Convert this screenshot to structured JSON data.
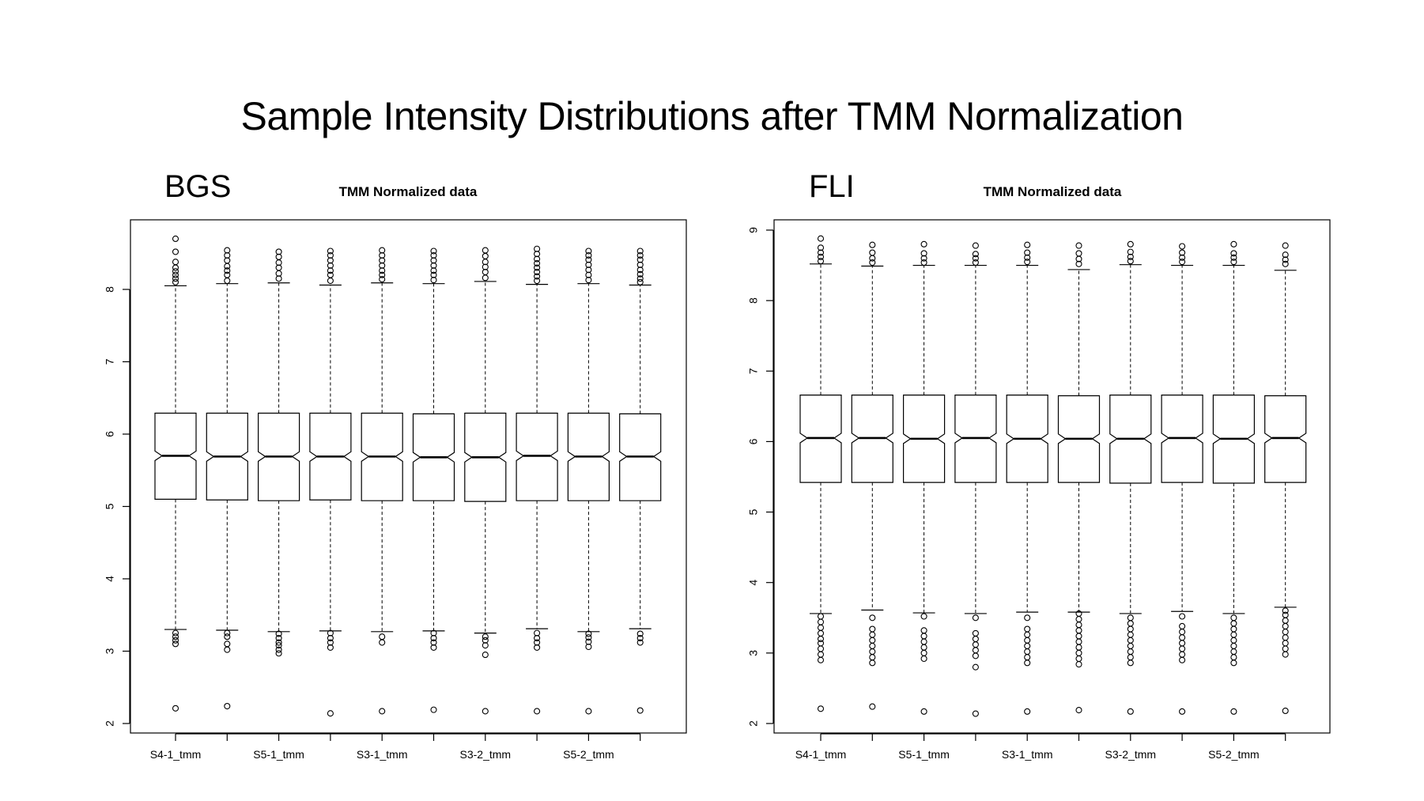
{
  "slide": {
    "title": "Sample Intensity Distributions after TMM Normalization"
  },
  "chart_data": [
    {
      "type": "boxplot",
      "panel_label": "BGS",
      "title": "TMM Normalized data",
      "xlabel": "",
      "ylabel": "",
      "ylim": [
        2,
        8.9
      ],
      "y_ticks": [
        2,
        3,
        4,
        5,
        6,
        7,
        8
      ],
      "x_tick_labels": [
        "S4-1_tmm",
        "S5-1_tmm",
        "S3-1_tmm",
        "S3-2_tmm",
        "S5-2_tmm"
      ],
      "notched": true,
      "grid": false,
      "series": [
        {
          "whisker_low": 3.3,
          "q1": 5.1,
          "median": 5.7,
          "q3": 6.29,
          "whisker_high": 8.05,
          "outliers_high": [
            8.1,
            8.15,
            8.2,
            8.25,
            8.3,
            8.38,
            8.52,
            8.7
          ],
          "outliers_low": [
            3.1,
            3.15,
            3.2,
            3.25,
            2.21
          ]
        },
        {
          "whisker_low": 3.29,
          "q1": 5.09,
          "median": 5.69,
          "q3": 6.29,
          "whisker_high": 8.08,
          "outliers_high": [
            8.12,
            8.2,
            8.26,
            8.32,
            8.4,
            8.47,
            8.54
          ],
          "outliers_low": [
            3.02,
            3.1,
            3.2,
            3.25,
            2.24
          ]
        },
        {
          "whisker_low": 3.27,
          "q1": 5.08,
          "median": 5.69,
          "q3": 6.29,
          "whisker_high": 8.09,
          "outliers_high": [
            8.15,
            8.22,
            8.3,
            8.37,
            8.45,
            8.52
          ],
          "outliers_low": [
            2.97,
            3.02,
            3.08,
            3.12,
            3.18,
            3.24
          ]
        },
        {
          "whisker_low": 3.28,
          "q1": 5.09,
          "median": 5.69,
          "q3": 6.29,
          "whisker_high": 8.06,
          "outliers_high": [
            8.12,
            8.2,
            8.26,
            8.33,
            8.4,
            8.47,
            8.53
          ],
          "outliers_low": [
            3.05,
            3.12,
            3.18,
            3.25,
            2.14
          ]
        },
        {
          "whisker_low": 3.27,
          "q1": 5.08,
          "median": 5.69,
          "q3": 6.29,
          "whisker_high": 8.09,
          "outliers_high": [
            8.14,
            8.2,
            8.26,
            8.33,
            8.4,
            8.47,
            8.54
          ],
          "outliers_low": [
            3.12,
            3.2,
            2.17
          ]
        },
        {
          "whisker_low": 3.28,
          "q1": 5.08,
          "median": 5.68,
          "q3": 6.28,
          "whisker_high": 8.08,
          "outliers_high": [
            8.13,
            8.2,
            8.26,
            8.33,
            8.4,
            8.47,
            8.53
          ],
          "outliers_low": [
            3.05,
            3.12,
            3.18,
            3.25,
            2.19
          ]
        },
        {
          "whisker_low": 3.25,
          "q1": 5.07,
          "median": 5.68,
          "q3": 6.29,
          "whisker_high": 8.11,
          "outliers_high": [
            8.16,
            8.24,
            8.31,
            8.38,
            8.46,
            8.54
          ],
          "outliers_low": [
            2.95,
            3.08,
            3.15,
            3.2,
            2.17
          ]
        },
        {
          "whisker_low": 3.31,
          "q1": 5.08,
          "median": 5.7,
          "q3": 6.29,
          "whisker_high": 8.07,
          "outliers_high": [
            8.12,
            8.18,
            8.24,
            8.3,
            8.36,
            8.42,
            8.49,
            8.56
          ],
          "outliers_low": [
            3.05,
            3.12,
            3.18,
            3.25,
            2.17
          ]
        },
        {
          "whisker_low": 3.27,
          "q1": 5.08,
          "median": 5.69,
          "q3": 6.29,
          "whisker_high": 8.08,
          "outliers_high": [
            8.13,
            8.2,
            8.27,
            8.34,
            8.41,
            8.47,
            8.53
          ],
          "outliers_low": [
            3.06,
            3.13,
            3.19,
            3.24,
            2.17
          ]
        },
        {
          "whisker_low": 3.31,
          "q1": 5.08,
          "median": 5.69,
          "q3": 6.28,
          "whisker_high": 8.06,
          "outliers_high": [
            8.1,
            8.15,
            8.21,
            8.27,
            8.34,
            8.41,
            8.47,
            8.53
          ],
          "outliers_low": [
            3.12,
            3.18,
            3.24,
            2.18
          ]
        }
      ]
    },
    {
      "type": "boxplot",
      "panel_label": "FLI",
      "title": "TMM Normalized data",
      "xlabel": "",
      "ylabel": "",
      "ylim": [
        2,
        9.1
      ],
      "y_ticks": [
        2,
        3,
        4,
        5,
        6,
        7,
        8,
        9
      ],
      "x_tick_labels": [
        "S4-1_tmm",
        "S5-1_tmm",
        "S3-1_tmm",
        "S3-2_tmm",
        "S5-2_tmm"
      ],
      "notched": true,
      "grid": false,
      "series": [
        {
          "whisker_low": 3.56,
          "q1": 5.42,
          "median": 6.05,
          "q3": 6.66,
          "whisker_high": 8.52,
          "outliers_high": [
            8.56,
            8.62,
            8.68,
            8.75,
            8.88
          ],
          "outliers_low": [
            2.9,
            2.98,
            3.06,
            3.14,
            3.2,
            3.28,
            3.36,
            3.44,
            3.52,
            2.21
          ]
        },
        {
          "whisker_low": 3.61,
          "q1": 5.42,
          "median": 6.05,
          "q3": 6.66,
          "whisker_high": 8.49,
          "outliers_high": [
            8.54,
            8.6,
            8.68,
            8.79
          ],
          "outliers_low": [
            2.86,
            2.94,
            3.02,
            3.1,
            3.18,
            3.26,
            3.34,
            3.5,
            2.24
          ]
        },
        {
          "whisker_low": 3.57,
          "q1": 5.42,
          "median": 6.04,
          "q3": 6.66,
          "whisker_high": 8.5,
          "outliers_high": [
            8.54,
            8.6,
            8.67,
            8.8
          ],
          "outliers_low": [
            2.92,
            3.0,
            3.08,
            3.16,
            3.24,
            3.32,
            3.52,
            2.17
          ]
        },
        {
          "whisker_low": 3.56,
          "q1": 5.42,
          "median": 6.05,
          "q3": 6.66,
          "whisker_high": 8.5,
          "outliers_high": [
            8.54,
            8.6,
            8.66,
            8.78
          ],
          "outliers_low": [
            2.8,
            2.96,
            3.04,
            3.12,
            3.2,
            3.28,
            3.5,
            2.14
          ]
        },
        {
          "whisker_low": 3.58,
          "q1": 5.42,
          "median": 6.04,
          "q3": 6.66,
          "whisker_high": 8.5,
          "outliers_high": [
            8.55,
            8.61,
            8.68,
            8.79
          ],
          "outliers_low": [
            2.86,
            2.94,
            3.02,
            3.1,
            3.18,
            3.26,
            3.34,
            3.5,
            2.17
          ]
        },
        {
          "whisker_low": 3.58,
          "q1": 5.42,
          "median": 6.04,
          "q3": 6.65,
          "whisker_high": 8.44,
          "outliers_high": [
            8.52,
            8.59,
            8.67,
            8.78
          ],
          "outliers_low": [
            2.84,
            2.92,
            3.0,
            3.08,
            3.16,
            3.24,
            3.32,
            3.4,
            3.48,
            3.56,
            2.19
          ]
        },
        {
          "whisker_low": 3.56,
          "q1": 5.41,
          "median": 6.04,
          "q3": 6.66,
          "whisker_high": 8.51,
          "outliers_high": [
            8.56,
            8.62,
            8.69,
            8.8
          ],
          "outliers_low": [
            2.86,
            2.94,
            3.02,
            3.1,
            3.18,
            3.26,
            3.34,
            3.42,
            3.5,
            2.17
          ]
        },
        {
          "whisker_low": 3.59,
          "q1": 5.42,
          "median": 6.05,
          "q3": 6.66,
          "whisker_high": 8.5,
          "outliers_high": [
            8.55,
            8.61,
            8.68,
            8.77
          ],
          "outliers_low": [
            2.9,
            2.98,
            3.06,
            3.14,
            3.22,
            3.3,
            3.38,
            3.52,
            2.17
          ]
        },
        {
          "whisker_low": 3.56,
          "q1": 5.41,
          "median": 6.04,
          "q3": 6.66,
          "whisker_high": 8.5,
          "outliers_high": [
            8.55,
            8.61,
            8.67,
            8.8
          ],
          "outliers_low": [
            2.86,
            2.94,
            3.02,
            3.1,
            3.18,
            3.26,
            3.34,
            3.42,
            3.5,
            2.17
          ]
        },
        {
          "whisker_low": 3.65,
          "q1": 5.42,
          "median": 6.05,
          "q3": 6.65,
          "whisker_high": 8.43,
          "outliers_high": [
            8.52,
            8.58,
            8.65,
            8.78
          ],
          "outliers_low": [
            2.98,
            3.06,
            3.14,
            3.22,
            3.3,
            3.38,
            3.46,
            3.54,
            3.6,
            2.18
          ]
        }
      ]
    }
  ]
}
